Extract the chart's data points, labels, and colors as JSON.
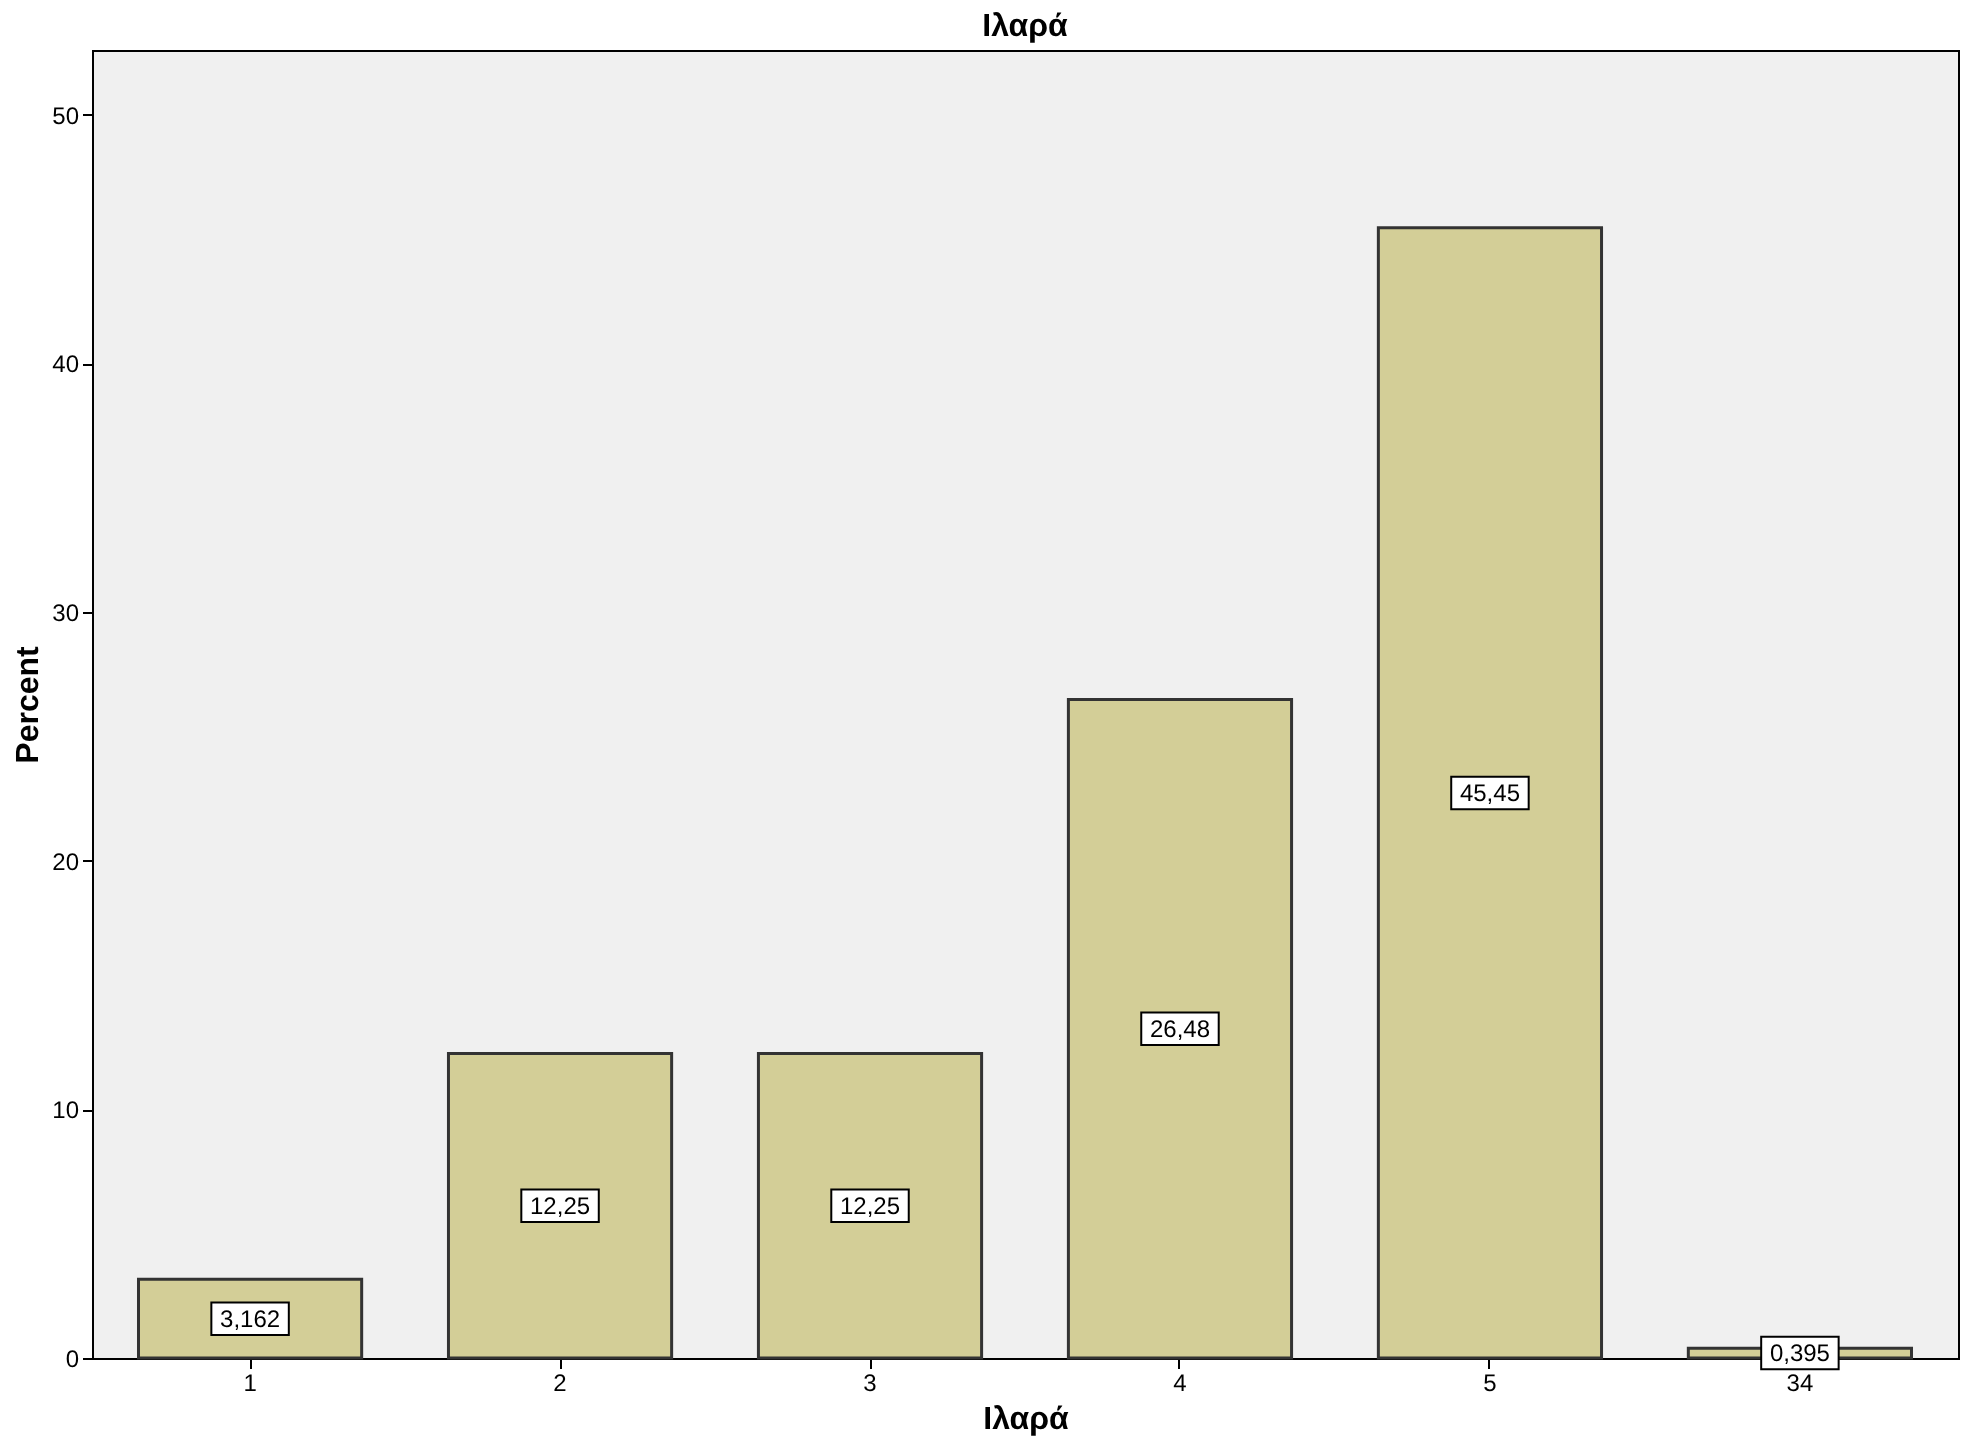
{
  "chart_data": {
    "type": "bar",
    "title": "Ιλαρά",
    "xlabel": "Ιλαρά",
    "ylabel": "Percent",
    "categories": [
      "1",
      "2",
      "3",
      "4",
      "5",
      "34"
    ],
    "values": [
      3.162,
      12.25,
      12.25,
      26.48,
      45.45,
      0.395
    ],
    "value_labels": [
      "3,162",
      "12,25",
      "12,25",
      "26,48",
      "45,45",
      "0,395"
    ],
    "color": "#d3ce97",
    "ylim": [
      0,
      52.6
    ],
    "yticks": [
      0,
      10,
      20,
      30,
      40,
      50
    ],
    "grid": false
  }
}
